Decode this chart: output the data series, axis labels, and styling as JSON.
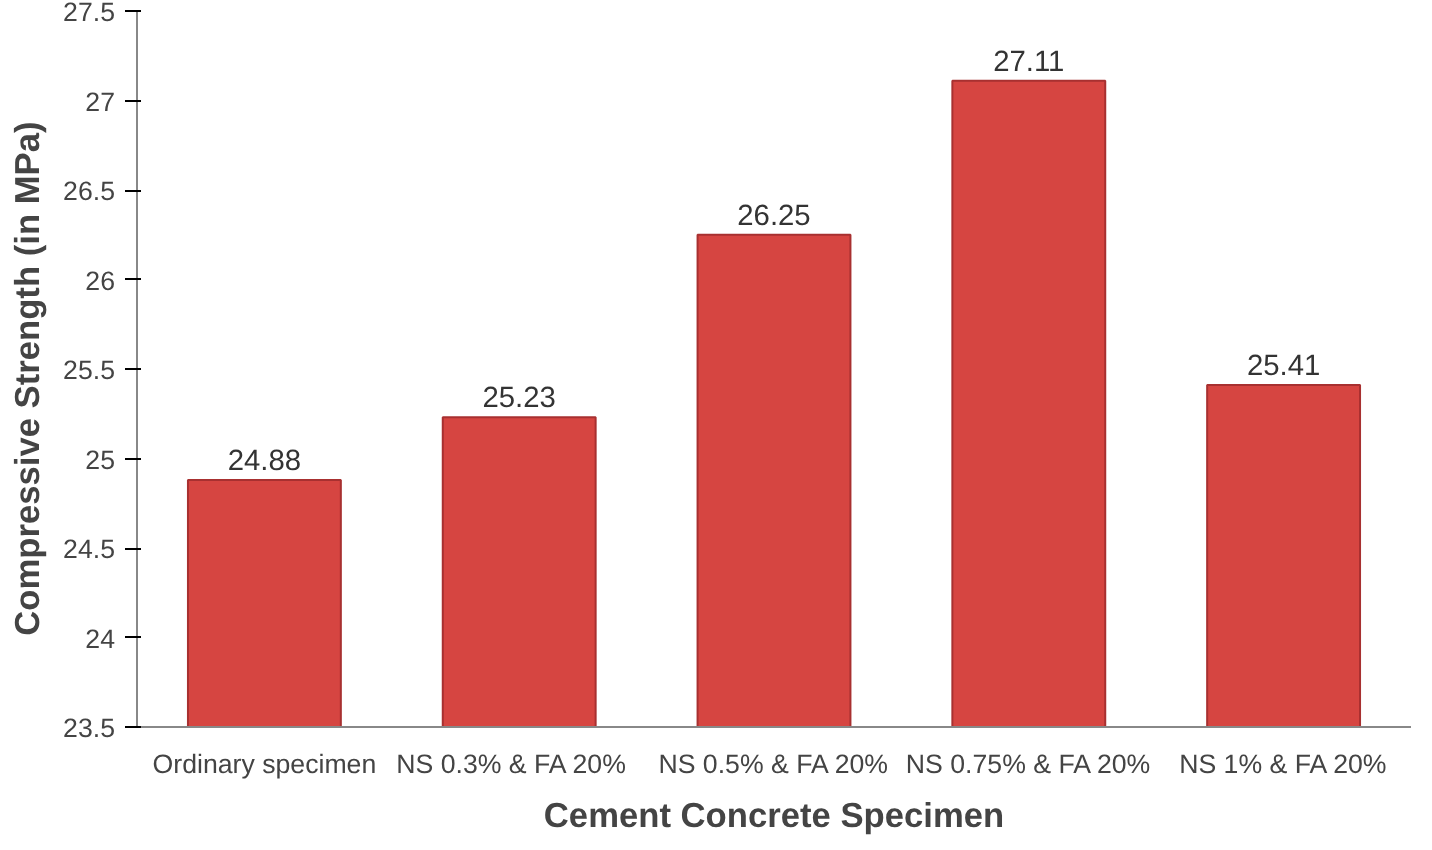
{
  "chart_data": {
    "type": "bar",
    "xlabel": "Cement Concrete Specimen",
    "ylabel": "Compressive  Strength  (in MPa)",
    "categories": [
      "Ordinary specimen",
      "NS 0.3%  &  FA 20%",
      "NS 0.5% & FA 20%",
      "NS 0.75% & FA 20%",
      "NS 1% & FA 20%"
    ],
    "values": [
      24.88,
      25.23,
      26.25,
      27.11,
      25.41
    ],
    "color": "#d64541",
    "ylim": [
      23.5,
      27.5
    ],
    "yticks": [
      23.5,
      24,
      24.5,
      25,
      25.5,
      26,
      26.5,
      27,
      27.5
    ],
    "data_labels": true,
    "grid": false
  }
}
